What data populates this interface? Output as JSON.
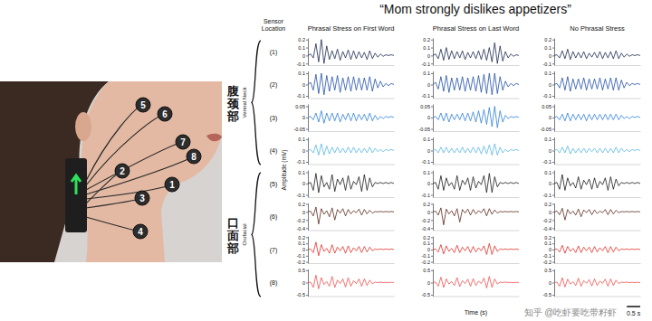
{
  "chart_data": {
    "type": "line",
    "title": "“Mom strongly dislikes appetizers”",
    "row_header": "Sensor Location",
    "columns": [
      "Phrasal Stress on First Word",
      "Phrasal Stress on Last Word",
      "No Phrasal Stress"
    ],
    "x_label": "Time (s)",
    "y_label": "Amplitude (mV)",
    "tick_labels": "y",
    "xlim": [
      0,
      3.2
    ],
    "x": [
      0,
      0.1,
      0.2,
      0.3,
      0.4,
      0.5,
      0.6,
      0.7,
      0.8,
      0.9,
      1.0,
      1.1,
      1.2,
      1.3,
      1.4,
      1.5,
      1.6,
      1.7,
      1.8,
      1.9,
      2.0,
      2.1,
      2.2,
      2.3,
      2.4,
      2.5,
      2.6,
      2.7,
      2.8,
      2.9,
      3.0,
      3.1,
      3.2
    ],
    "scale_bar": {
      "value": 0.5,
      "label": "0.5 s"
    },
    "sensors": [
      "1",
      "2",
      "3",
      "4",
      "5",
      "6",
      "7",
      "8"
    ],
    "groups": [
      {
        "label": "腹颈部",
        "sublabel": "Ventral Neck"
      },
      {
        "label": "口面部",
        "sublabel": "Orofacial"
      }
    ],
    "watermark": "知乎 @吃虾要吃带籽虾",
    "rows": [
      {
        "label": "(1)",
        "color": "#1b2a4e",
        "ylim": [
          -0.12,
          0.22
        ],
        "yticks": [
          -0.1,
          0,
          0.1,
          0.2
        ],
        "values": [
          [
            0,
            0.02,
            -0.03,
            0.15,
            -0.08,
            0.2,
            -0.1,
            0.12,
            -0.05,
            0.06,
            -0.04,
            0.08,
            -0.06,
            0.05,
            -0.03,
            0.07,
            -0.05,
            0.06,
            -0.04,
            0.05,
            -0.03,
            0.04,
            -0.05,
            0.06,
            -0.04,
            0.03,
            -0.02,
            0.02,
            -0.01,
            0.01,
            0,
            0.01,
            0
          ],
          [
            0,
            0.02,
            -0.04,
            0.08,
            -0.06,
            0.1,
            -0.05,
            0.06,
            -0.04,
            0.05,
            -0.03,
            0.06,
            -0.05,
            0.04,
            -0.03,
            0.05,
            -0.04,
            0.06,
            -0.05,
            0.08,
            -0.06,
            0.1,
            -0.08,
            0.16,
            -0.1,
            0.12,
            -0.07,
            0.05,
            -0.03,
            0.02,
            -0.01,
            0.01,
            0
          ],
          [
            0,
            0.01,
            -0.03,
            0.06,
            -0.04,
            0.08,
            -0.05,
            0.05,
            -0.03,
            0.04,
            -0.03,
            0.05,
            -0.04,
            0.03,
            -0.02,
            0.04,
            -0.03,
            0.05,
            -0.04,
            0.04,
            -0.03,
            0.05,
            -0.04,
            0.06,
            -0.04,
            0.03,
            -0.02,
            0.02,
            -0.01,
            0.01,
            0,
            0.01,
            0
          ]
        ]
      },
      {
        "label": "(2)",
        "color": "#1f4fa8",
        "ylim": [
          -0.12,
          0.12
        ],
        "yticks": [
          -0.1,
          0,
          0.1
        ],
        "values": [
          [
            0,
            0.02,
            -0.05,
            0.09,
            -0.08,
            0.1,
            -0.09,
            0.08,
            -0.06,
            0.07,
            -0.05,
            0.08,
            -0.07,
            0.06,
            -0.05,
            0.07,
            -0.06,
            0.07,
            -0.05,
            0.06,
            -0.05,
            0.06,
            -0.05,
            0.07,
            -0.06,
            0.05,
            -0.03,
            0.03,
            -0.02,
            0.01,
            -0.01,
            0.01,
            0
          ],
          [
            0,
            0.02,
            -0.04,
            0.07,
            -0.06,
            0.08,
            -0.07,
            0.06,
            -0.05,
            0.06,
            -0.05,
            0.07,
            -0.06,
            0.06,
            -0.05,
            0.07,
            -0.06,
            0.08,
            -0.07,
            0.09,
            -0.08,
            0.1,
            -0.09,
            0.1,
            -0.08,
            0.07,
            -0.05,
            0.03,
            -0.02,
            0.01,
            -0.01,
            0.01,
            0
          ],
          [
            0,
            0.01,
            -0.03,
            0.06,
            -0.05,
            0.07,
            -0.06,
            0.05,
            -0.04,
            0.05,
            -0.04,
            0.06,
            -0.05,
            0.05,
            -0.04,
            0.05,
            -0.04,
            0.06,
            -0.05,
            0.05,
            -0.04,
            0.06,
            -0.05,
            0.06,
            -0.05,
            0.04,
            -0.03,
            0.02,
            -0.01,
            0.01,
            0,
            0.01,
            0
          ]
        ]
      },
      {
        "label": "(3)",
        "color": "#2e7fd6",
        "ylim": [
          -0.06,
          0.06
        ],
        "yticks": [
          -0.05,
          0,
          0.05
        ],
        "values": [
          [
            0,
            0.005,
            -0.01,
            0.02,
            -0.02,
            0.03,
            -0.025,
            0.02,
            -0.015,
            0.02,
            -0.015,
            0.02,
            -0.02,
            0.015,
            -0.01,
            0.02,
            -0.015,
            0.02,
            -0.015,
            0.015,
            -0.01,
            0.015,
            -0.015,
            0.02,
            -0.015,
            0.01,
            -0.01,
            0.005,
            -0.005,
            0.005,
            0,
            0.005,
            0
          ],
          [
            0,
            0.005,
            -0.01,
            0.02,
            -0.015,
            0.02,
            -0.02,
            0.015,
            -0.01,
            0.015,
            -0.01,
            0.02,
            -0.015,
            0.02,
            -0.015,
            0.025,
            -0.02,
            0.03,
            -0.025,
            0.035,
            -0.03,
            0.045,
            -0.04,
            0.05,
            -0.045,
            0.03,
            -0.02,
            0.01,
            -0.005,
            0.005,
            0,
            0.005,
            0
          ],
          [
            0,
            0.005,
            -0.01,
            0.015,
            -0.015,
            0.02,
            -0.015,
            0.015,
            -0.01,
            0.015,
            -0.01,
            0.015,
            -0.015,
            0.015,
            -0.01,
            0.015,
            -0.01,
            0.015,
            -0.01,
            0.015,
            -0.01,
            0.015,
            -0.01,
            0.015,
            -0.01,
            0.01,
            -0.005,
            0.005,
            -0.005,
            0.005,
            0,
            0.005,
            0
          ]
        ]
      },
      {
        "label": "(4)",
        "color": "#58b6e6",
        "ylim": [
          -0.12,
          0.12
        ],
        "yticks": [
          -0.1,
          0,
          0.1
        ],
        "values": [
          [
            0,
            0.01,
            -0.02,
            0.05,
            -0.04,
            0.06,
            -0.04,
            0.04,
            -0.03,
            0.03,
            -0.02,
            0.03,
            -0.02,
            0.02,
            -0.02,
            0.03,
            -0.02,
            0.03,
            -0.02,
            0.02,
            -0.02,
            0.02,
            -0.02,
            0.03,
            -0.02,
            0.02,
            -0.01,
            0.01,
            -0.01,
            0.01,
            0,
            0.01,
            0
          ],
          [
            0,
            0.01,
            -0.02,
            0.03,
            -0.02,
            0.03,
            -0.02,
            0.02,
            -0.02,
            0.02,
            -0.02,
            0.03,
            -0.02,
            0.02,
            -0.02,
            0.03,
            -0.02,
            0.03,
            -0.03,
            0.04,
            -0.03,
            0.05,
            -0.04,
            0.06,
            -0.04,
            0.03,
            -0.02,
            0.01,
            -0.01,
            0.01,
            0,
            0.01,
            0
          ],
          [
            0,
            0.01,
            -0.02,
            0.03,
            -0.02,
            0.04,
            -0.03,
            0.02,
            -0.02,
            0.02,
            -0.02,
            0.02,
            -0.02,
            0.02,
            -0.01,
            0.02,
            -0.02,
            0.02,
            -0.02,
            0.02,
            -0.02,
            0.02,
            -0.02,
            0.03,
            -0.02,
            0.02,
            -0.01,
            0.01,
            -0.01,
            0.01,
            0,
            0.01,
            0
          ]
        ]
      },
      {
        "label": "(5)",
        "color": "#1a1a1a",
        "ylim": [
          -0.12,
          0.12
        ],
        "yticks": [
          -0.1,
          0,
          0.1
        ],
        "values": [
          [
            0,
            0.01,
            -0.06,
            0.09,
            -0.08,
            0.07,
            -0.03,
            0.01,
            -0.05,
            0.08,
            -0.07,
            0.04,
            -0.01,
            0.05,
            -0.06,
            0.07,
            -0.05,
            0.02,
            -0.01,
            0.06,
            -0.07,
            0.08,
            -0.06,
            0.05,
            -0.03,
            0.01,
            0,
            0.01,
            0,
            0.01,
            0,
            0.01,
            0
          ],
          [
            0,
            0.01,
            -0.05,
            0.07,
            -0.06,
            0.05,
            -0.02,
            0.01,
            -0.05,
            0.07,
            -0.06,
            0.03,
            -0.01,
            0.05,
            -0.06,
            0.06,
            -0.04,
            0.02,
            -0.01,
            0.07,
            -0.08,
            0.09,
            -0.08,
            0.06,
            -0.03,
            0.01,
            0,
            0.01,
            0,
            0.01,
            0,
            0.01,
            0
          ],
          [
            0,
            0.01,
            -0.05,
            0.08,
            -0.06,
            0.05,
            -0.02,
            0.01,
            -0.04,
            0.06,
            -0.05,
            0.03,
            -0.01,
            0.04,
            -0.05,
            0.05,
            -0.04,
            0.02,
            -0.01,
            0.05,
            -0.06,
            0.06,
            -0.05,
            0.04,
            -0.02,
            0.01,
            0,
            0.01,
            0,
            0.01,
            0,
            0.01,
            0
          ]
        ]
      },
      {
        "label": "(6)",
        "color": "#5a2b1c",
        "ylim": [
          -0.45,
          0.22
        ],
        "yticks": [
          -0.4,
          -0.2,
          0,
          0.2
        ],
        "values": [
          [
            0,
            0.02,
            -0.1,
            0.12,
            -0.3,
            0.08,
            -0.06,
            0.03,
            -0.12,
            0.1,
            -0.2,
            0.06,
            -0.03,
            0.08,
            -0.1,
            0.06,
            -0.05,
            0.03,
            -0.02,
            0.07,
            -0.08,
            0.06,
            -0.05,
            0.04,
            -0.03,
            0.01,
            0,
            0.01,
            0,
            0.01,
            0,
            0.01,
            0
          ],
          [
            0,
            0.02,
            -0.08,
            0.1,
            -0.32,
            0.07,
            -0.05,
            0.03,
            -0.1,
            0.08,
            -0.25,
            0.06,
            -0.03,
            0.07,
            -0.08,
            0.06,
            -0.05,
            0.03,
            -0.02,
            0.08,
            -0.1,
            0.08,
            -0.06,
            0.05,
            -0.03,
            0.01,
            0,
            0.01,
            0,
            0.01,
            0,
            0.01,
            0
          ],
          [
            0,
            0.02,
            -0.07,
            0.09,
            -0.2,
            0.06,
            -0.05,
            0.02,
            -0.08,
            0.07,
            -0.12,
            0.05,
            -0.02,
            0.06,
            -0.07,
            0.05,
            -0.04,
            0.02,
            -0.02,
            0.06,
            -0.07,
            0.06,
            -0.05,
            0.04,
            -0.02,
            0.01,
            0,
            0.01,
            0,
            0.01,
            0,
            0.01,
            0
          ]
        ]
      },
      {
        "label": "(7)",
        "color": "#e0302a",
        "ylim": [
          -0.22,
          0.22
        ],
        "yticks": [
          -0.2,
          -0.1,
          0,
          0.1,
          0.2
        ],
        "values": [
          [
            0,
            0.01,
            -0.05,
            0.12,
            -0.1,
            0.08,
            -0.03,
            0.02,
            -0.06,
            0.08,
            -0.06,
            0.04,
            -0.02,
            0.05,
            -0.06,
            0.06,
            -0.05,
            0.03,
            -0.02,
            0.05,
            -0.05,
            0.05,
            -0.04,
            0.04,
            -0.02,
            0.01,
            0,
            0.01,
            0,
            0.01,
            0,
            0.01,
            0
          ],
          [
            0,
            0.01,
            -0.04,
            0.08,
            -0.07,
            0.06,
            -0.03,
            0.02,
            -0.05,
            0.07,
            -0.05,
            0.04,
            -0.02,
            0.05,
            -0.05,
            0.05,
            -0.04,
            0.03,
            -0.02,
            0.06,
            -0.08,
            0.1,
            -0.08,
            0.06,
            -0.03,
            0.01,
            0,
            0.01,
            0,
            0.01,
            0,
            0.01,
            0
          ],
          [
            0,
            0.01,
            -0.04,
            0.07,
            -0.06,
            0.05,
            -0.03,
            0.02,
            -0.05,
            0.06,
            -0.05,
            0.04,
            -0.02,
            0.04,
            -0.05,
            0.05,
            -0.04,
            0.03,
            -0.02,
            0.05,
            -0.05,
            0.05,
            -0.04,
            0.04,
            -0.02,
            0.01,
            0,
            0.01,
            0,
            0.01,
            0,
            0.01,
            0
          ]
        ]
      },
      {
        "label": "(8)",
        "color": "#f05050",
        "ylim": [
          -0.55,
          0.55
        ],
        "yticks": [
          -0.5,
          0,
          0.5
        ],
        "values": [
          [
            0,
            0.02,
            -0.2,
            0.3,
            -0.25,
            0.2,
            -0.08,
            0.04,
            -0.15,
            0.25,
            -0.2,
            0.1,
            -0.04,
            0.15,
            -0.18,
            0.2,
            -0.15,
            0.08,
            -0.04,
            0.15,
            -0.15,
            0.15,
            -0.12,
            0.1,
            -0.05,
            0.02,
            0,
            0.02,
            0,
            0.01,
            0,
            0.01,
            0
          ],
          [
            0,
            0.02,
            -0.15,
            0.22,
            -0.2,
            0.15,
            -0.06,
            0.04,
            -0.12,
            0.2,
            -0.16,
            0.08,
            -0.04,
            0.14,
            -0.15,
            0.16,
            -0.12,
            0.06,
            -0.04,
            0.18,
            -0.22,
            0.25,
            -0.2,
            0.15,
            -0.06,
            0.02,
            0,
            0.02,
            0,
            0.01,
            0,
            0.01,
            0
          ],
          [
            0,
            0.02,
            -0.15,
            0.2,
            -0.18,
            0.14,
            -0.06,
            0.03,
            -0.12,
            0.18,
            -0.15,
            0.08,
            -0.03,
            0.12,
            -0.14,
            0.15,
            -0.12,
            0.06,
            -0.03,
            0.14,
            -0.15,
            0.15,
            -0.12,
            0.1,
            -0.04,
            0.02,
            0,
            0.02,
            0,
            0.01,
            0,
            0.01,
            0
          ]
        ]
      }
    ]
  }
}
